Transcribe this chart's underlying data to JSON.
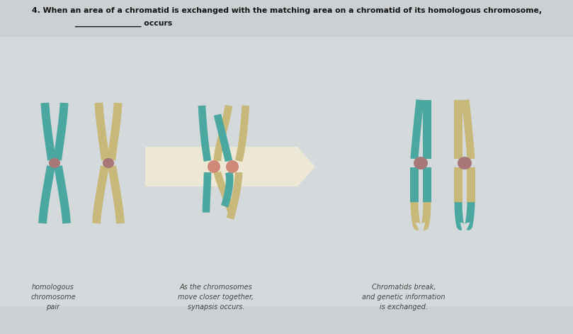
{
  "title_line1": "4. When an area of a chromatid is exchanged with the matching area on a chromatid of its homologous chromosome,",
  "title_line2": "_________________ occurs",
  "bg_color": "#ccd0d2",
  "caption_left_lines": [
    "homologous",
    "chromosome",
    "pair"
  ],
  "caption_mid_lines": [
    "As the chromosomes",
    "move closer together,",
    "synapsis occurs."
  ],
  "caption_right_lines": [
    "Chromatids break,",
    "and genetic information",
    "is exchanged."
  ],
  "teal": "#4aa8a0",
  "tan": "#c8b87a",
  "pink_cen": "#d08878",
  "mauve_cen": "#a87878",
  "arrow_fill": "#f0ead8",
  "white_bg": "#dce2e4"
}
